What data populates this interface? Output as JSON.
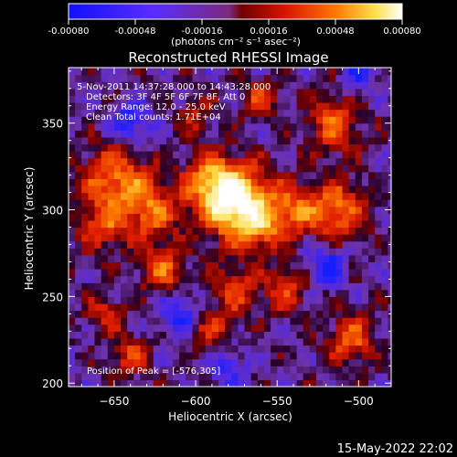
{
  "colorbar": {
    "ticks": [
      "-0.00080",
      "-0.00048",
      "-0.00016",
      "0.00016",
      "0.00048",
      "0.00080"
    ],
    "unit_text": "(photons cm⁻² s⁻¹ asec⁻²)"
  },
  "timestamp": "15-May-2022 22:02",
  "chart_data": {
    "type": "heatmap",
    "title": "Reconstructed RHESSI Image",
    "xlabel": "Heliocentric X (arcsec)",
    "ylabel": "Heliocentric Y (arcsec)",
    "xlim": [
      -678,
      -480
    ],
    "ylim": [
      198,
      382
    ],
    "x_ticks": [
      -650,
      -600,
      -550,
      -500
    ],
    "y_ticks": [
      200,
      250,
      300,
      350
    ],
    "annotations": [
      " 5-Nov-2011 14:37:28.000 to 14:43:28.000",
      "Detectors: 3F 4F 5F 6F 7F 8F, Att 0",
      "Energy Range: 12.0 - 25.0 keV",
      "Clean     Total counts: 1.71E+04"
    ],
    "peak_label": "Position of Peak = [-576,305]",
    "peak": [
      -576,
      305
    ],
    "colors": {
      "negative": [
        "#1a1aff",
        "#6a2cff",
        "#9a40d8"
      ],
      "positive": [
        "#8a0000",
        "#e62000",
        "#ff8a00",
        "#ffee60",
        "#ffffff"
      ],
      "background": "#000000"
    }
  }
}
